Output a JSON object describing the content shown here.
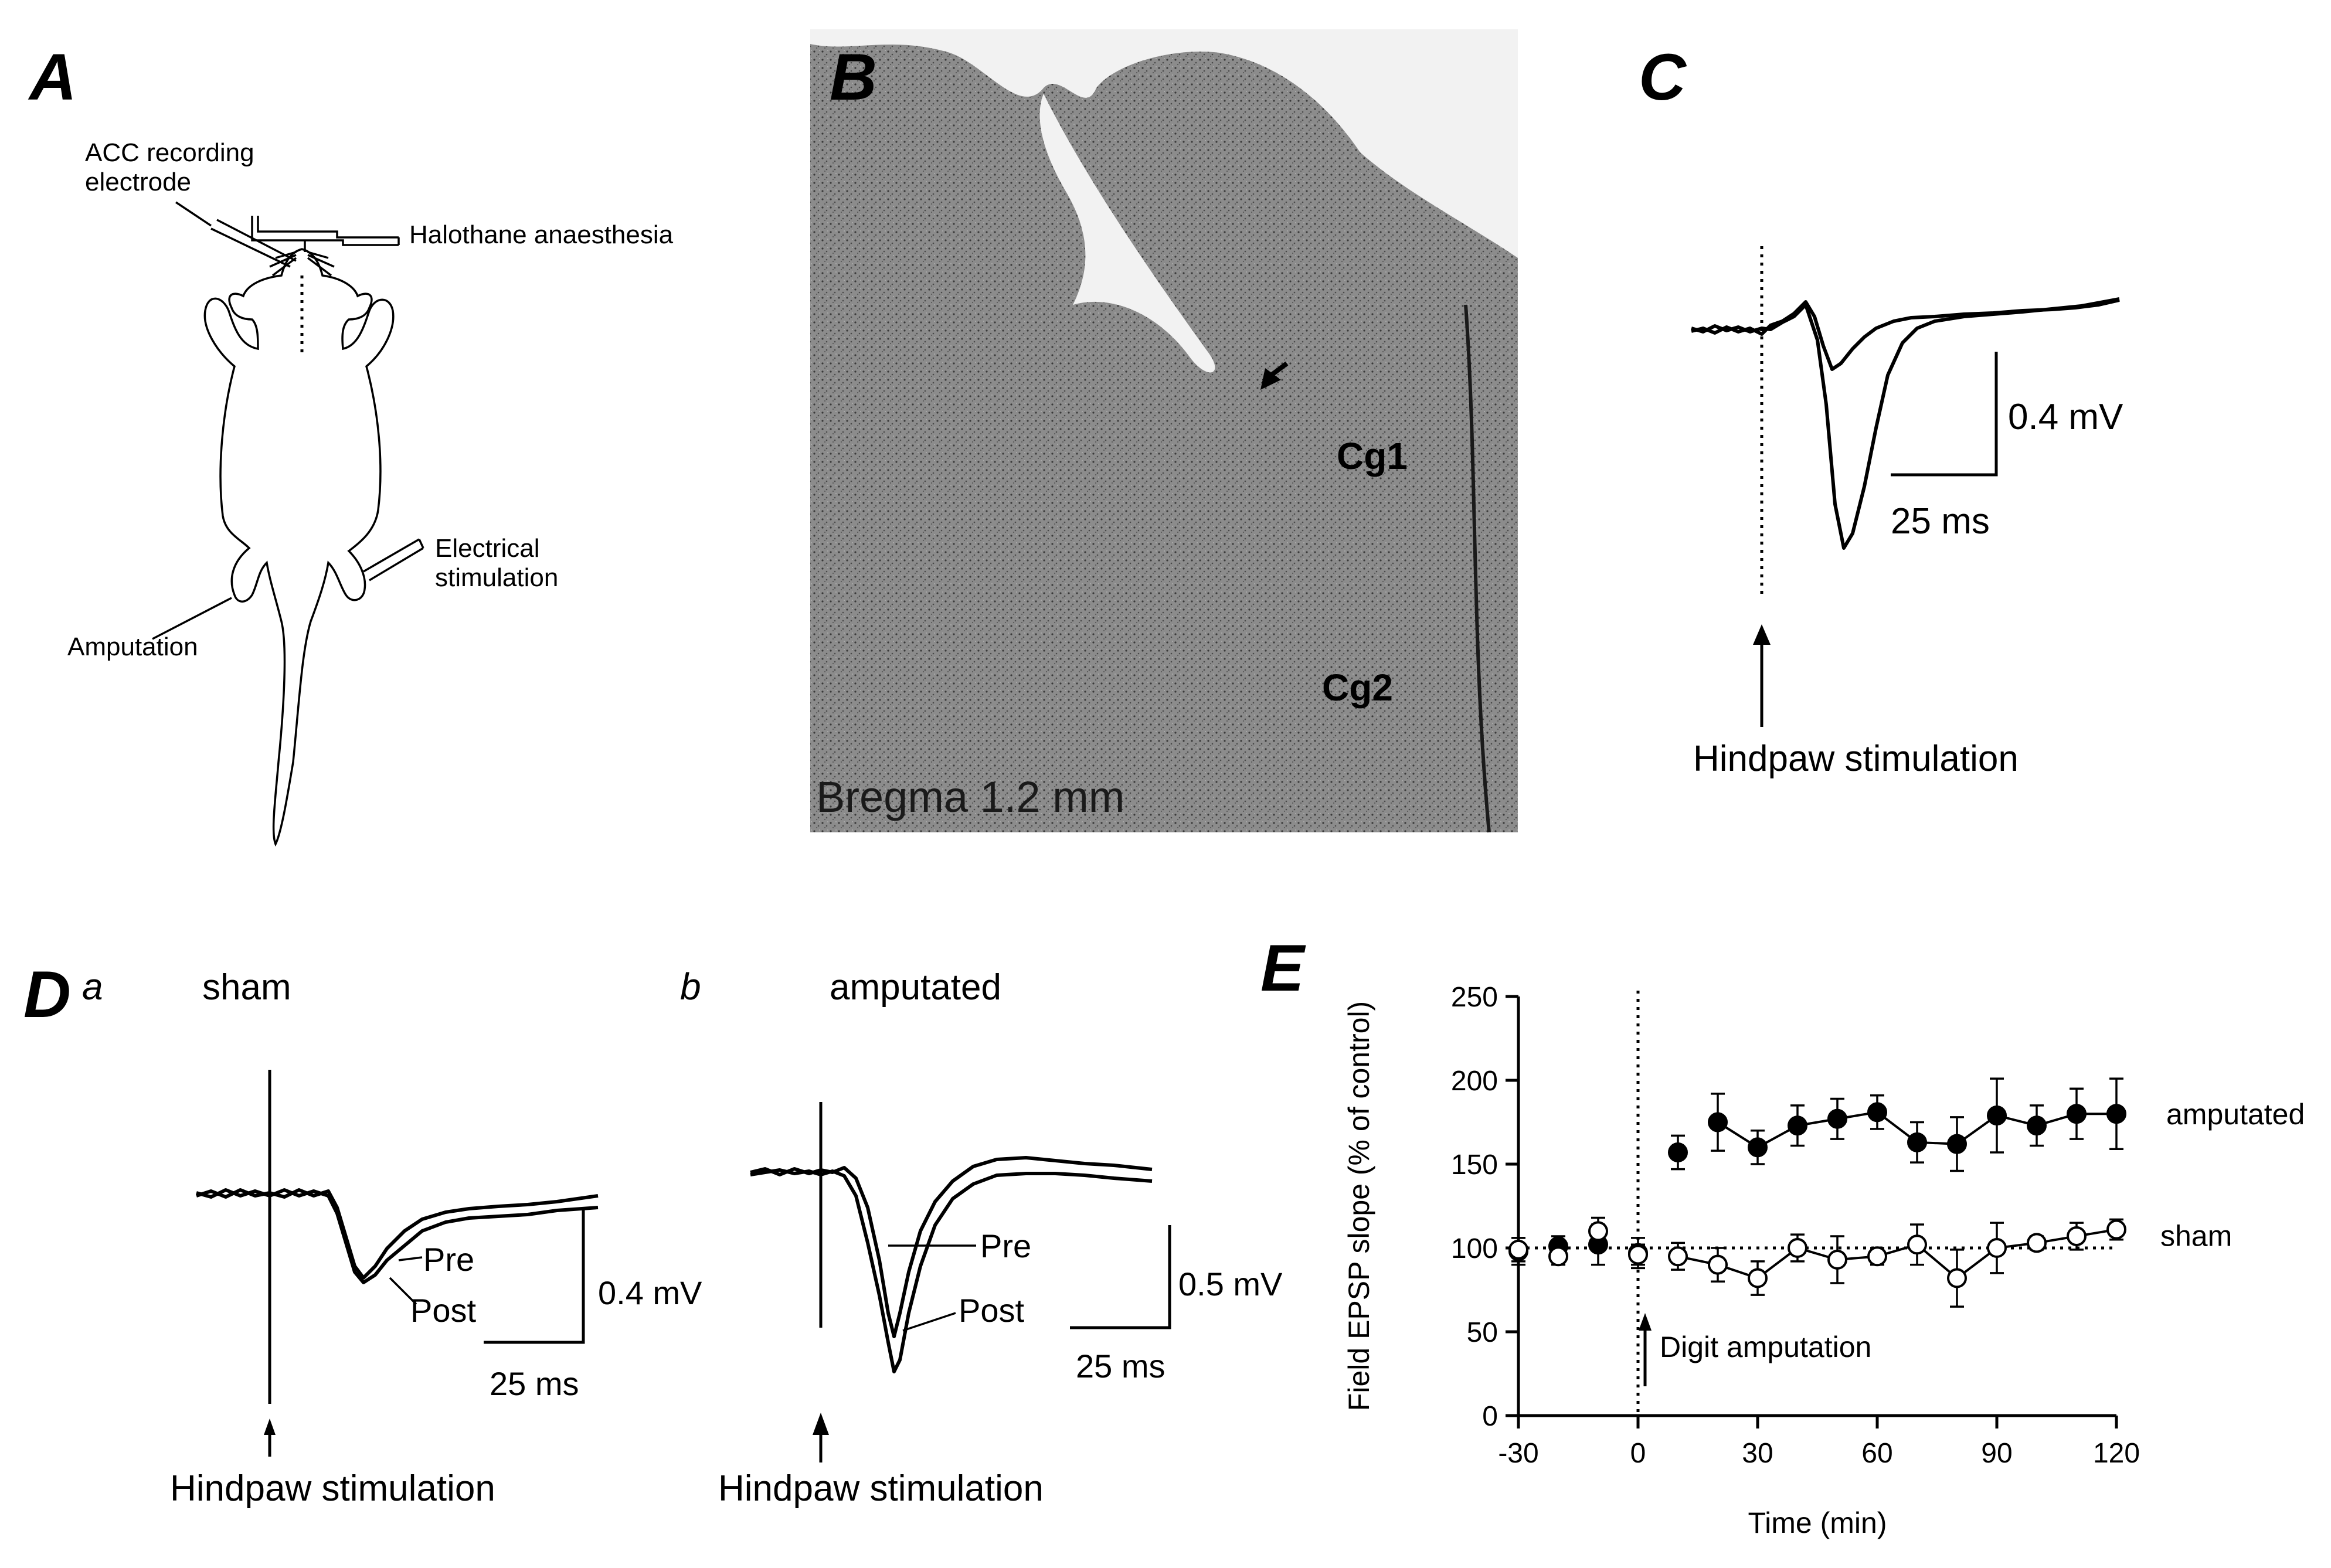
{
  "panels": {
    "A": {
      "letter": "A",
      "labels": {
        "electrode": [
          "ACC recording",
          "electrode"
        ],
        "anaesthesia": "Halothane anaesthesia",
        "stimulation": [
          "Electrical",
          "stimulation"
        ],
        "amputation": "Amputation"
      }
    },
    "B": {
      "letter": "B",
      "region1": "Cg1",
      "region2": "Cg2",
      "caption": "Bregma 1.2 mm"
    },
    "C": {
      "letter": "C",
      "scale_v": "0.4 mV",
      "scale_t": "25 ms",
      "stim": "Hindpaw stimulation"
    },
    "D": {
      "letter": "D",
      "a": {
        "sub": "a",
        "title": "sham",
        "pre": "Pre",
        "post": "Post",
        "scale_v": "0.4 mV",
        "scale_t": "25 ms",
        "stim": "Hindpaw stimulation"
      },
      "b": {
        "sub": "b",
        "title": "amputated",
        "pre": "Pre",
        "post": "Post",
        "scale_v": "0.5 mV",
        "scale_t": "25 ms",
        "stim": "Hindpaw stimulation"
      }
    },
    "E": {
      "letter": "E",
      "annotation": "Digit amputation"
    }
  },
  "chart_data": {
    "type": "scatter",
    "xlabel": "Time (min)",
    "ylabel": "Field EPSP slope (% of control)",
    "xlim": [
      -30,
      120
    ],
    "ylim": [
      0,
      250
    ],
    "xticks": [
      -30,
      0,
      30,
      60,
      90,
      120
    ],
    "yticks": [
      0,
      50,
      100,
      150,
      200,
      250
    ],
    "reference_line": 100,
    "event_x": 0,
    "series": [
      {
        "name": "amputated",
        "marker": "filled-circle",
        "connected_from_index": 5,
        "x": [
          -30,
          -20,
          -10,
          0,
          10,
          20,
          30,
          40,
          50,
          60,
          70,
          80,
          90,
          100,
          110,
          120
        ],
        "y": [
          98,
          101,
          102,
          97,
          157,
          175,
          160,
          173,
          177,
          181,
          163,
          162,
          179,
          173,
          180,
          180
        ],
        "err": [
          8,
          6,
          12,
          9,
          10,
          17,
          10,
          12,
          12,
          10,
          12,
          16,
          22,
          12,
          15,
          21
        ]
      },
      {
        "name": "sham",
        "marker": "open-circle",
        "connected_from_index": 4,
        "x": [
          -30,
          -20,
          -10,
          0,
          10,
          20,
          30,
          40,
          50,
          60,
          70,
          80,
          90,
          100,
          110,
          120
        ],
        "y": [
          99,
          95,
          110,
          96,
          95,
          90,
          82,
          100,
          93,
          95,
          102,
          82,
          100,
          103,
          107,
          111
        ],
        "err": [
          7,
          5,
          8,
          6,
          8,
          10,
          10,
          8,
          14,
          5,
          12,
          17,
          15,
          4,
          8,
          6
        ]
      }
    ]
  }
}
